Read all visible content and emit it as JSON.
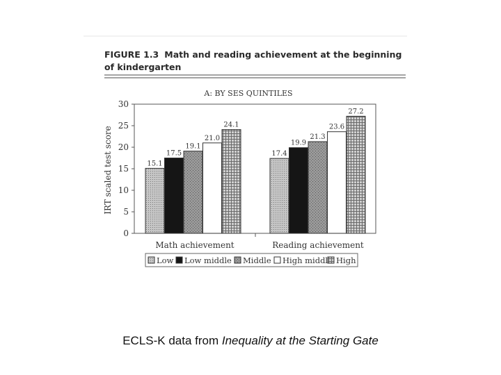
{
  "figure": {
    "label": "FIGURE 1.3",
    "title_line1": "Math and reading achievement at the beginning",
    "title_line2": "of kindergarten"
  },
  "chart_data": {
    "type": "bar",
    "title": "A: BY SES QUINTILES",
    "ylabel": "IRT scaled test score",
    "xlabel": "",
    "ylim": [
      0,
      30
    ],
    "yticks": [
      "0",
      "5",
      "10",
      "15",
      "20",
      "25",
      "30"
    ],
    "grid": false,
    "legend_position": "bottom",
    "categories": [
      "Math achievement",
      "Reading achievement"
    ],
    "series": [
      {
        "name": "Low",
        "values": [
          15.1,
          17.4
        ],
        "value_labels": [
          "15.1",
          "17.4"
        ],
        "fill": "dots",
        "color": "#b8b8b8"
      },
      {
        "name": "Low middle",
        "values": [
          17.5,
          19.9
        ],
        "value_labels": [
          "17.5",
          "19.9"
        ],
        "fill": "solid",
        "color": "#151515"
      },
      {
        "name": "Middle",
        "values": [
          19.1,
          21.3
        ],
        "value_labels": [
          "19.1",
          "21.3"
        ],
        "fill": "grain",
        "color": "#8c8c8c"
      },
      {
        "name": "High middle",
        "values": [
          21.0,
          23.6
        ],
        "value_labels": [
          "21.0",
          "23.6"
        ],
        "fill": "white",
        "color": "#ffffff"
      },
      {
        "name": "High",
        "values": [
          24.1,
          27.2
        ],
        "value_labels": [
          "24.1",
          "27.2"
        ],
        "fill": "grid",
        "color": "#a6a6a6"
      }
    ]
  },
  "caption": {
    "prefix": "ECLS-K data from ",
    "source": "Inequality at the Starting Gate"
  }
}
